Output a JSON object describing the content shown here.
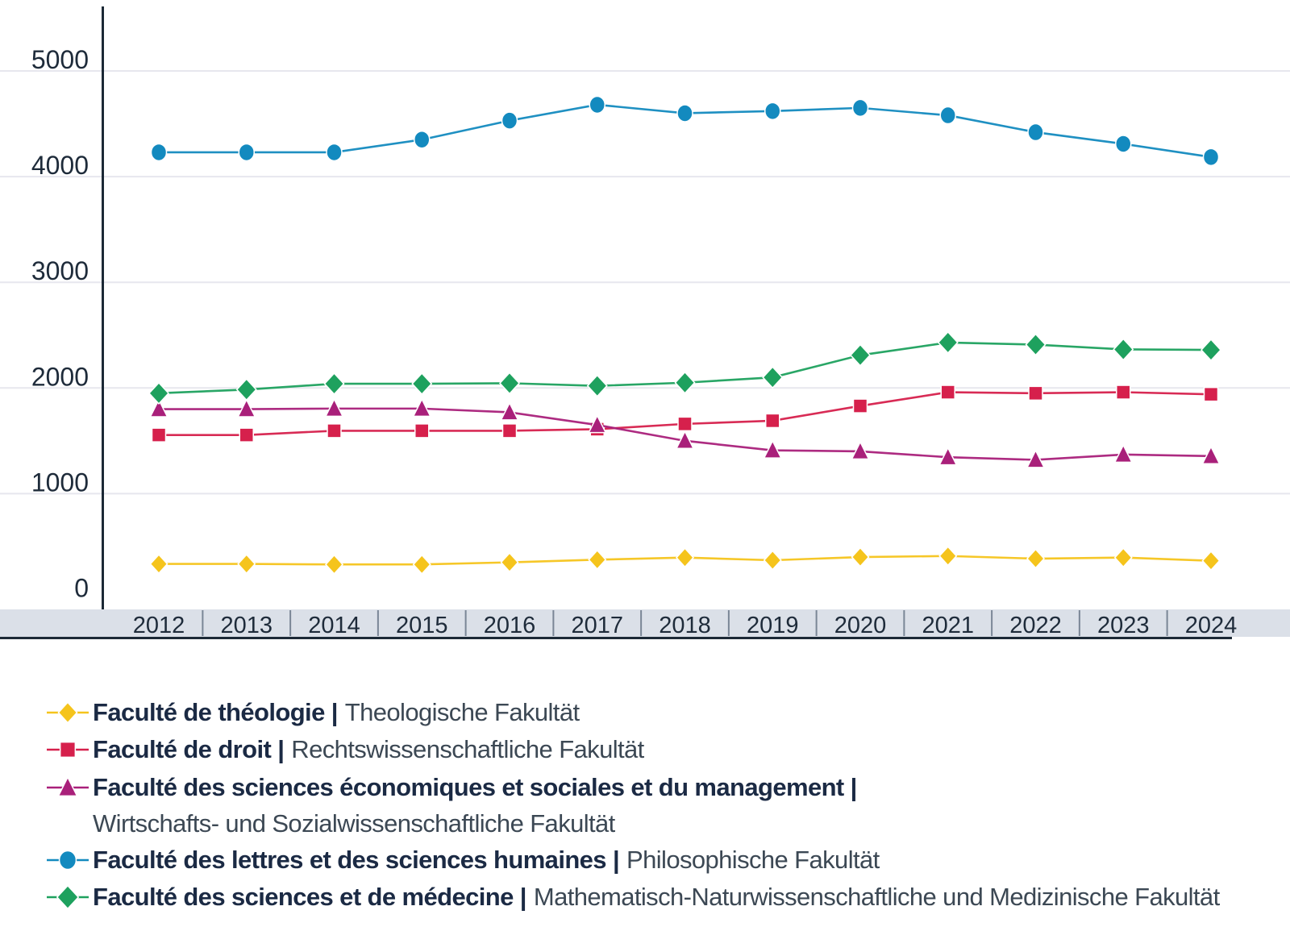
{
  "page": {
    "background": "#ffffff"
  },
  "colors": {
    "accent_yellow": "#F5C41C",
    "accent_red": "#D6204C",
    "accent_magenta": "#A9207A",
    "accent_blue": "#138ABF",
    "accent_green": "#1EA15E",
    "tick_text": "#1E2B3A",
    "legend_fr_text": "#1B2A44",
    "legend_de_text": "#3C4854",
    "axis_band": "#DBE0E8",
    "band_divider": "#7A8696",
    "gridline": "#E7E7EE",
    "axis_line": "#1C2936"
  },
  "legend": {
    "items": [
      {
        "fr": "Faculté de théologie |",
        "de": "Theologische Fakultät"
      },
      {
        "fr": "Faculté de droit |",
        "de": "Rechtswissenschaftliche Fakultät"
      },
      {
        "fr": "Faculté des sciences économiques et sociales et du management |",
        "de": ""
      },
      {
        "fr": "",
        "de": "Wirtschafts- und Sozialwissenschaftliche Fakultät"
      },
      {
        "fr": "Faculté des lettres et des sciences humaines |",
        "de": "Philosophische Fakultät"
      },
      {
        "fr": "Faculté des sciences et de médecine |",
        "de": "Mathematisch-Naturwissenschaftliche und Medizinische Fakultät"
      }
    ]
  },
  "chart_data": {
    "type": "line",
    "title": "",
    "xlabel": "",
    "ylabel": "",
    "x": [
      2012,
      2013,
      2014,
      2015,
      2016,
      2017,
      2018,
      2019,
      2020,
      2021,
      2022,
      2023,
      2024
    ],
    "yticks": [
      0,
      1000,
      2000,
      3000,
      4000,
      5000
    ],
    "ylim": [
      0,
      5500
    ],
    "grid": "horizontal",
    "legend_position": "bottom",
    "series": [
      {
        "name": "Faculté de théologie",
        "name_de": "Theologische Fakultät",
        "marker": "diamond",
        "color": "#F5C41C",
        "values": [
          335,
          335,
          330,
          330,
          350,
          375,
          395,
          370,
          400,
          410,
          385,
          395,
          365
        ]
      },
      {
        "name": "Faculté de droit",
        "name_de": "Rechtswissenschaftliche Fakultät",
        "marker": "square",
        "color": "#D6204C",
        "values": [
          1555,
          1555,
          1595,
          1595,
          1595,
          1610,
          1660,
          1690,
          1830,
          1960,
          1950,
          1960,
          1940
        ]
      },
      {
        "name": "Faculté des sciences économiques et sociales et du management",
        "name_de": "Wirtschafts- und Sozialwissenschaftliche Fakultät",
        "marker": "triangle",
        "color": "#A9207A",
        "values": [
          1800,
          1800,
          1805,
          1805,
          1770,
          1650,
          1500,
          1410,
          1400,
          1345,
          1320,
          1370,
          1355
        ]
      },
      {
        "name": "Faculté des lettres et des sciences humaines",
        "name_de": "Philosophische Fakultät",
        "marker": "circle",
        "color": "#138ABF",
        "values": [
          4230,
          4230,
          4230,
          4350,
          4530,
          4680,
          4600,
          4620,
          4650,
          4580,
          4420,
          4310,
          4185
        ]
      },
      {
        "name": "Faculté des sciences et de médecine",
        "name_de": "Mathematisch-Naturwissenschaftliche und Medizinische Fakultät",
        "marker": "diamond",
        "color": "#1EA15E",
        "values": [
          1950,
          1985,
          2040,
          2040,
          2045,
          2020,
          2050,
          2100,
          2310,
          2430,
          2410,
          2365,
          2360
        ]
      }
    ]
  }
}
